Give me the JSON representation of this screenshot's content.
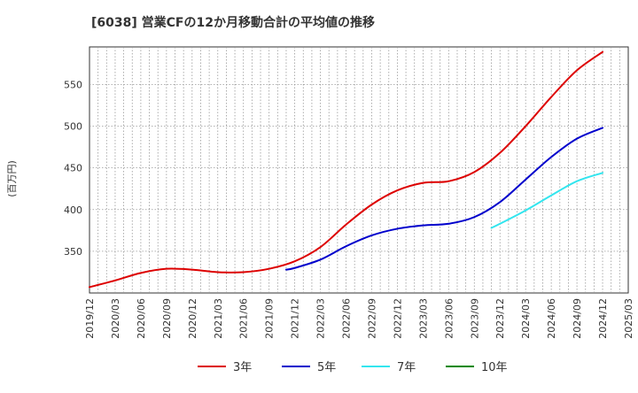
{
  "chart_data": {
    "type": "line",
    "title": "[6038]  営業CFの12か月移動合計の平均値の推移",
    "ylabel": "(百万円)",
    "xlabel": "",
    "ylim": [
      300,
      595
    ],
    "y_ticks": [
      350,
      400,
      450,
      500,
      550
    ],
    "x_ticks": [
      "2019/12",
      "2020/03",
      "2020/06",
      "2020/09",
      "2020/12",
      "2021/03",
      "2021/06",
      "2021/09",
      "2021/12",
      "2022/03",
      "2022/06",
      "2022/09",
      "2022/12",
      "2023/03",
      "2023/06",
      "2023/09",
      "2023/12",
      "2024/03",
      "2024/06",
      "2024/09",
      "2024/12",
      "2025/03"
    ],
    "grid": true,
    "legend_position": "bottom",
    "colors": {
      "3年": "#dd0000",
      "5年": "#0000cc",
      "7年": "#33e5ee",
      "10年": "#008800"
    },
    "series": [
      {
        "name": "3年",
        "x": [
          "2019/12",
          "2020/03",
          "2020/06",
          "2020/09",
          "2020/12",
          "2021/03",
          "2021/06",
          "2021/09",
          "2021/12",
          "2022/03",
          "2022/06",
          "2022/09",
          "2022/12",
          "2023/03",
          "2023/06",
          "2023/09",
          "2023/12",
          "2024/03",
          "2024/06",
          "2024/09",
          "2024/12"
        ],
        "values": [
          307,
          315,
          324,
          329,
          328,
          325,
          325,
          329,
          338,
          355,
          382,
          406,
          423,
          432,
          434,
          445,
          468,
          500,
          535,
          567,
          589
        ]
      },
      {
        "name": "5年",
        "x": [
          "2021/11",
          "2021/12",
          "2022/03",
          "2022/06",
          "2022/09",
          "2022/12",
          "2023/03",
          "2023/06",
          "2023/09",
          "2023/12",
          "2024/03",
          "2024/06",
          "2024/09",
          "2024/12"
        ],
        "values": [
          328,
          330,
          340,
          356,
          369,
          377,
          381,
          383,
          391,
          409,
          436,
          463,
          485,
          498
        ]
      },
      {
        "name": "7年",
        "x": [
          "2023/11",
          "2023/12",
          "2024/03",
          "2024/06",
          "2024/09",
          "2024/12"
        ],
        "values": [
          378,
          383,
          399,
          417,
          434,
          444
        ]
      },
      {
        "name": "10年",
        "x": [],
        "values": []
      }
    ]
  }
}
